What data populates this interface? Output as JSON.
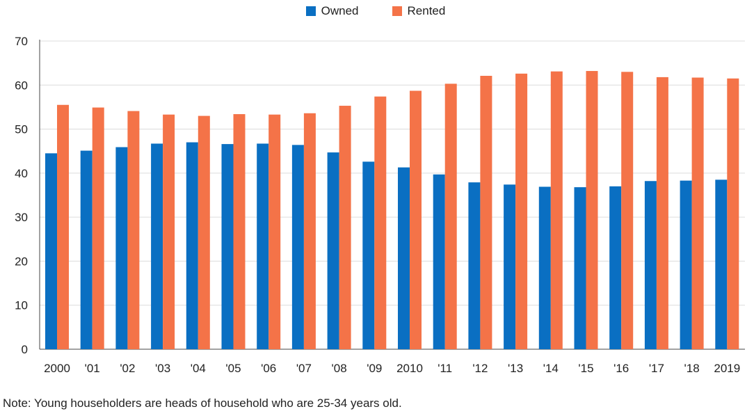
{
  "chart_data": {
    "type": "bar",
    "categories": [
      "2000",
      "'01",
      "'02",
      "'03",
      "'04",
      "'05",
      "'06",
      "'07",
      "'08",
      "'09",
      "2010",
      "'11",
      "'12",
      "'13",
      "'14",
      "'15",
      "'16",
      "'17",
      "'18",
      "2019"
    ],
    "series": [
      {
        "name": "Owned",
        "color": "#0a6fc2",
        "values": [
          44.5,
          45.1,
          45.9,
          46.7,
          47.0,
          46.6,
          46.7,
          46.4,
          44.7,
          42.6,
          41.3,
          39.7,
          37.9,
          37.4,
          36.9,
          36.8,
          37.0,
          38.2,
          38.3,
          38.5
        ]
      },
      {
        "name": "Rented",
        "color": "#f47348",
        "values": [
          55.5,
          54.9,
          54.1,
          53.3,
          53.0,
          53.4,
          53.3,
          53.6,
          55.3,
          57.4,
          58.7,
          60.3,
          62.1,
          62.6,
          63.1,
          63.2,
          63.0,
          61.8,
          61.7,
          61.5
        ]
      }
    ],
    "yticks": [
      0,
      10,
      20,
      30,
      40,
      50,
      60,
      70
    ],
    "ylim": [
      0,
      70
    ],
    "grid": true,
    "legend_position": "top-center"
  },
  "note": "Note: Young householders are heads of household who are 25-34 years old."
}
